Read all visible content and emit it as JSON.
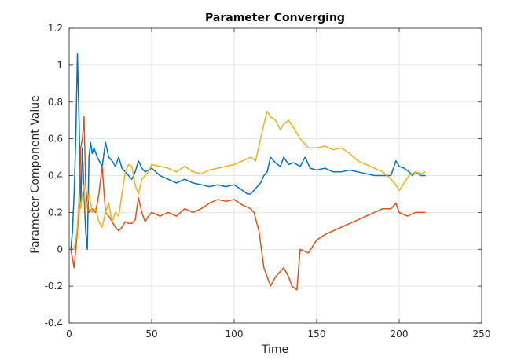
{
  "chart_data": {
    "type": "line",
    "title": "Parameter Converging",
    "xlabel": "Time",
    "ylabel": "Parameter Component Value",
    "xlim": [
      0,
      250
    ],
    "ylim": [
      -0.4,
      1.2
    ],
    "xticks": [
      0,
      50,
      100,
      150,
      200,
      250
    ],
    "xtick_labels": [
      "0",
      "50",
      "100",
      "150",
      "200",
      "250"
    ],
    "yticks": [
      -0.4,
      -0.2,
      0,
      0.2,
      0.4,
      0.6,
      0.8,
      1,
      1.2
    ],
    "ytick_labels": [
      "-0.4",
      "-0.2",
      "0",
      "0.2",
      "0.4",
      "0.6",
      "0.8",
      "1",
      "1.2"
    ],
    "grid": true,
    "legend": false,
    "series": [
      {
        "color": "#0072BD",
        "x": [
          1,
          2,
          3,
          4,
          5,
          6,
          7,
          8,
          9,
          10,
          11,
          12,
          13,
          14,
          15,
          17,
          20,
          22,
          24,
          26,
          28,
          30,
          32,
          34,
          36,
          38,
          40,
          42,
          44,
          46,
          48,
          50,
          55,
          60,
          65,
          70,
          75,
          80,
          85,
          90,
          95,
          100,
          105,
          108,
          110,
          113,
          116,
          118,
          120,
          122,
          125,
          128,
          130,
          133,
          136,
          140,
          143,
          146,
          150,
          155,
          160,
          165,
          170,
          175,
          180,
          185,
          190,
          195,
          198,
          200,
          203,
          206,
          208,
          210,
          213,
          216
        ],
        "y": [
          0.0,
          0.1,
          0.3,
          0.6,
          1.06,
          0.7,
          0.25,
          0.55,
          0.3,
          0.1,
          0.0,
          0.5,
          0.58,
          0.52,
          0.55,
          0.5,
          0.45,
          0.58,
          0.5,
          0.48,
          0.45,
          0.5,
          0.44,
          0.42,
          0.4,
          0.38,
          0.42,
          0.48,
          0.44,
          0.42,
          0.43,
          0.44,
          0.4,
          0.38,
          0.36,
          0.38,
          0.36,
          0.35,
          0.34,
          0.35,
          0.34,
          0.35,
          0.32,
          0.3,
          0.3,
          0.33,
          0.36,
          0.4,
          0.42,
          0.5,
          0.47,
          0.45,
          0.5,
          0.46,
          0.47,
          0.45,
          0.5,
          0.44,
          0.43,
          0.44,
          0.42,
          0.42,
          0.43,
          0.42,
          0.41,
          0.4,
          0.4,
          0.4,
          0.48,
          0.45,
          0.44,
          0.42,
          0.4,
          0.42,
          0.4,
          0.4
        ]
      },
      {
        "color": "#D95319",
        "x": [
          1,
          2,
          3,
          4,
          5,
          6,
          7,
          8,
          9,
          10,
          11,
          12,
          14,
          16,
          18,
          20,
          22,
          24,
          26,
          28,
          30,
          32,
          34,
          36,
          38,
          40,
          42,
          44,
          46,
          48,
          50,
          55,
          60,
          65,
          70,
          75,
          80,
          85,
          90,
          95,
          100,
          105,
          110,
          112,
          115,
          118,
          120,
          122,
          125,
          128,
          130,
          133,
          135,
          138,
          140,
          145,
          150,
          155,
          160,
          165,
          170,
          175,
          180,
          185,
          190,
          195,
          198,
          200,
          205,
          210,
          213,
          216
        ],
        "y": [
          0.0,
          -0.05,
          -0.1,
          0.0,
          0.1,
          0.2,
          0.55,
          0.6,
          0.72,
          0.35,
          0.25,
          0.2,
          0.22,
          0.2,
          0.3,
          0.45,
          0.2,
          0.18,
          0.15,
          0.12,
          0.1,
          0.12,
          0.15,
          0.14,
          0.14,
          0.16,
          0.28,
          0.2,
          0.15,
          0.18,
          0.2,
          0.18,
          0.2,
          0.18,
          0.22,
          0.2,
          0.22,
          0.25,
          0.27,
          0.26,
          0.27,
          0.24,
          0.22,
          0.2,
          0.1,
          -0.1,
          -0.15,
          -0.2,
          -0.15,
          -0.12,
          -0.1,
          -0.15,
          -0.2,
          -0.22,
          0.0,
          -0.02,
          0.05,
          0.08,
          0.1,
          0.12,
          0.14,
          0.16,
          0.18,
          0.2,
          0.22,
          0.22,
          0.25,
          0.2,
          0.18,
          0.2,
          0.2,
          0.2
        ]
      },
      {
        "color": "#EDB120",
        "x": [
          1,
          2,
          3,
          4,
          5,
          6,
          7,
          8,
          9,
          10,
          11,
          12,
          14,
          16,
          18,
          20,
          22,
          24,
          26,
          28,
          30,
          32,
          34,
          36,
          38,
          40,
          42,
          44,
          46,
          48,
          50,
          55,
          60,
          65,
          70,
          75,
          80,
          85,
          90,
          95,
          100,
          105,
          110,
          113,
          116,
          118,
          120,
          122,
          125,
          128,
          130,
          133,
          136,
          140,
          145,
          150,
          155,
          160,
          165,
          170,
          175,
          180,
          185,
          190,
          195,
          198,
          200,
          203,
          206,
          210,
          213,
          216
        ],
        "y": [
          0.0,
          0.0,
          0.0,
          0.05,
          0.12,
          0.3,
          0.22,
          0.3,
          0.35,
          0.2,
          0.25,
          0.3,
          0.2,
          0.22,
          0.15,
          0.12,
          0.2,
          0.25,
          0.15,
          0.2,
          0.18,
          0.3,
          0.42,
          0.46,
          0.45,
          0.35,
          0.3,
          0.38,
          0.4,
          0.42,
          0.46,
          0.45,
          0.44,
          0.42,
          0.45,
          0.42,
          0.41,
          0.43,
          0.44,
          0.45,
          0.46,
          0.48,
          0.5,
          0.48,
          0.6,
          0.68,
          0.75,
          0.72,
          0.7,
          0.65,
          0.68,
          0.7,
          0.66,
          0.6,
          0.55,
          0.55,
          0.56,
          0.54,
          0.55,
          0.52,
          0.48,
          0.46,
          0.44,
          0.42,
          0.38,
          0.35,
          0.32,
          0.36,
          0.4,
          0.42,
          0.41,
          0.42
        ]
      }
    ]
  }
}
